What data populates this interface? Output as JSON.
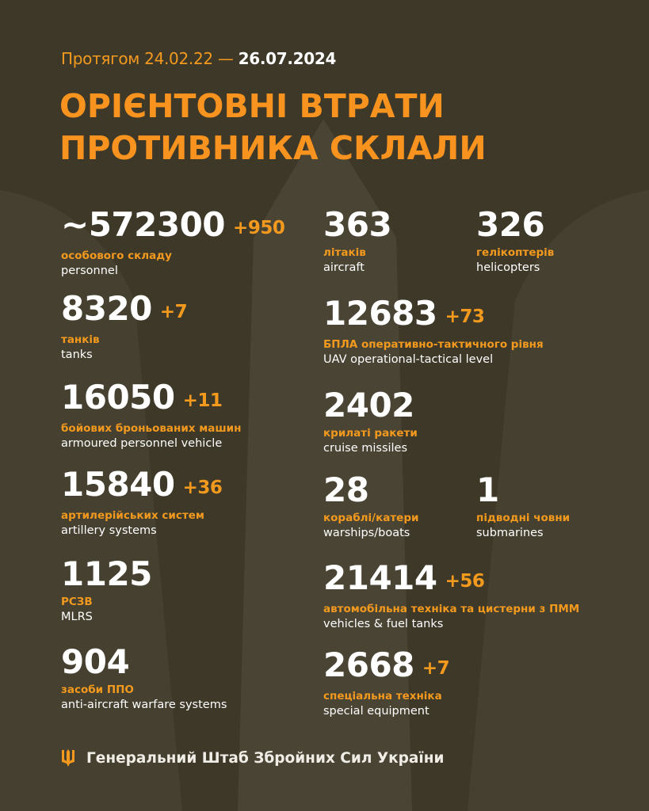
{
  "header": {
    "period_prefix": "Протягом 24.02.22 —",
    "period_end": "26.07.2024",
    "title_line1": "ОРІЄНТОВНІ ВТРАТИ",
    "title_line2": "ПРОТИВНИКА СКЛАЛИ"
  },
  "colors": {
    "background": "#3e3829",
    "accent": "#f39a1e",
    "text": "#ffffff"
  },
  "stats": [
    {
      "value": "~572300",
      "delta": "+950",
      "ua": "особового складу",
      "en": "personnel"
    },
    {
      "value": "8320",
      "delta": "+7",
      "ua": "танків",
      "en": "tanks"
    },
    {
      "value": "16050",
      "delta": "+11",
      "ua": "бойових броньованих машин",
      "en": "armoured personnel vehicle"
    },
    {
      "value": "15840",
      "delta": "+36",
      "ua": "артилерійських систем",
      "en": "artillery systems"
    },
    {
      "value": "1125",
      "delta": "",
      "ua": "РСЗВ",
      "en": "MLRS"
    },
    {
      "value": "904",
      "delta": "",
      "ua": "засоби ППО",
      "en": "anti-aircraft warfare systems"
    },
    {
      "value": "363",
      "delta": "",
      "ua": "літаків",
      "en": "aircraft"
    },
    {
      "value": "326",
      "delta": "",
      "ua": "гелікоптерів",
      "en": "helicopters"
    },
    {
      "value": "12683",
      "delta": "+73",
      "ua": "БПЛА оперативно-тактичного рівня",
      "en": "UAV operational-tactical level"
    },
    {
      "value": "2402",
      "delta": "",
      "ua": "крилаті ракети",
      "en": "cruise missiles"
    },
    {
      "value": "28",
      "delta": "",
      "ua": "кораблі/катери",
      "en": "warships/boats"
    },
    {
      "value": "1",
      "delta": "",
      "ua": "підводні човни",
      "en": "submarines"
    },
    {
      "value": "21414",
      "delta": "+56",
      "ua": "автомобільна техніка та цистерни з ПММ",
      "en": "vehicles & fuel tanks"
    },
    {
      "value": "2668",
      "delta": "+7",
      "ua": "спеціальна техніка",
      "en": "special equipment"
    }
  ],
  "footer": {
    "text": "Генеральний Штаб Збройних Сил України",
    "icon": "trident-icon"
  }
}
